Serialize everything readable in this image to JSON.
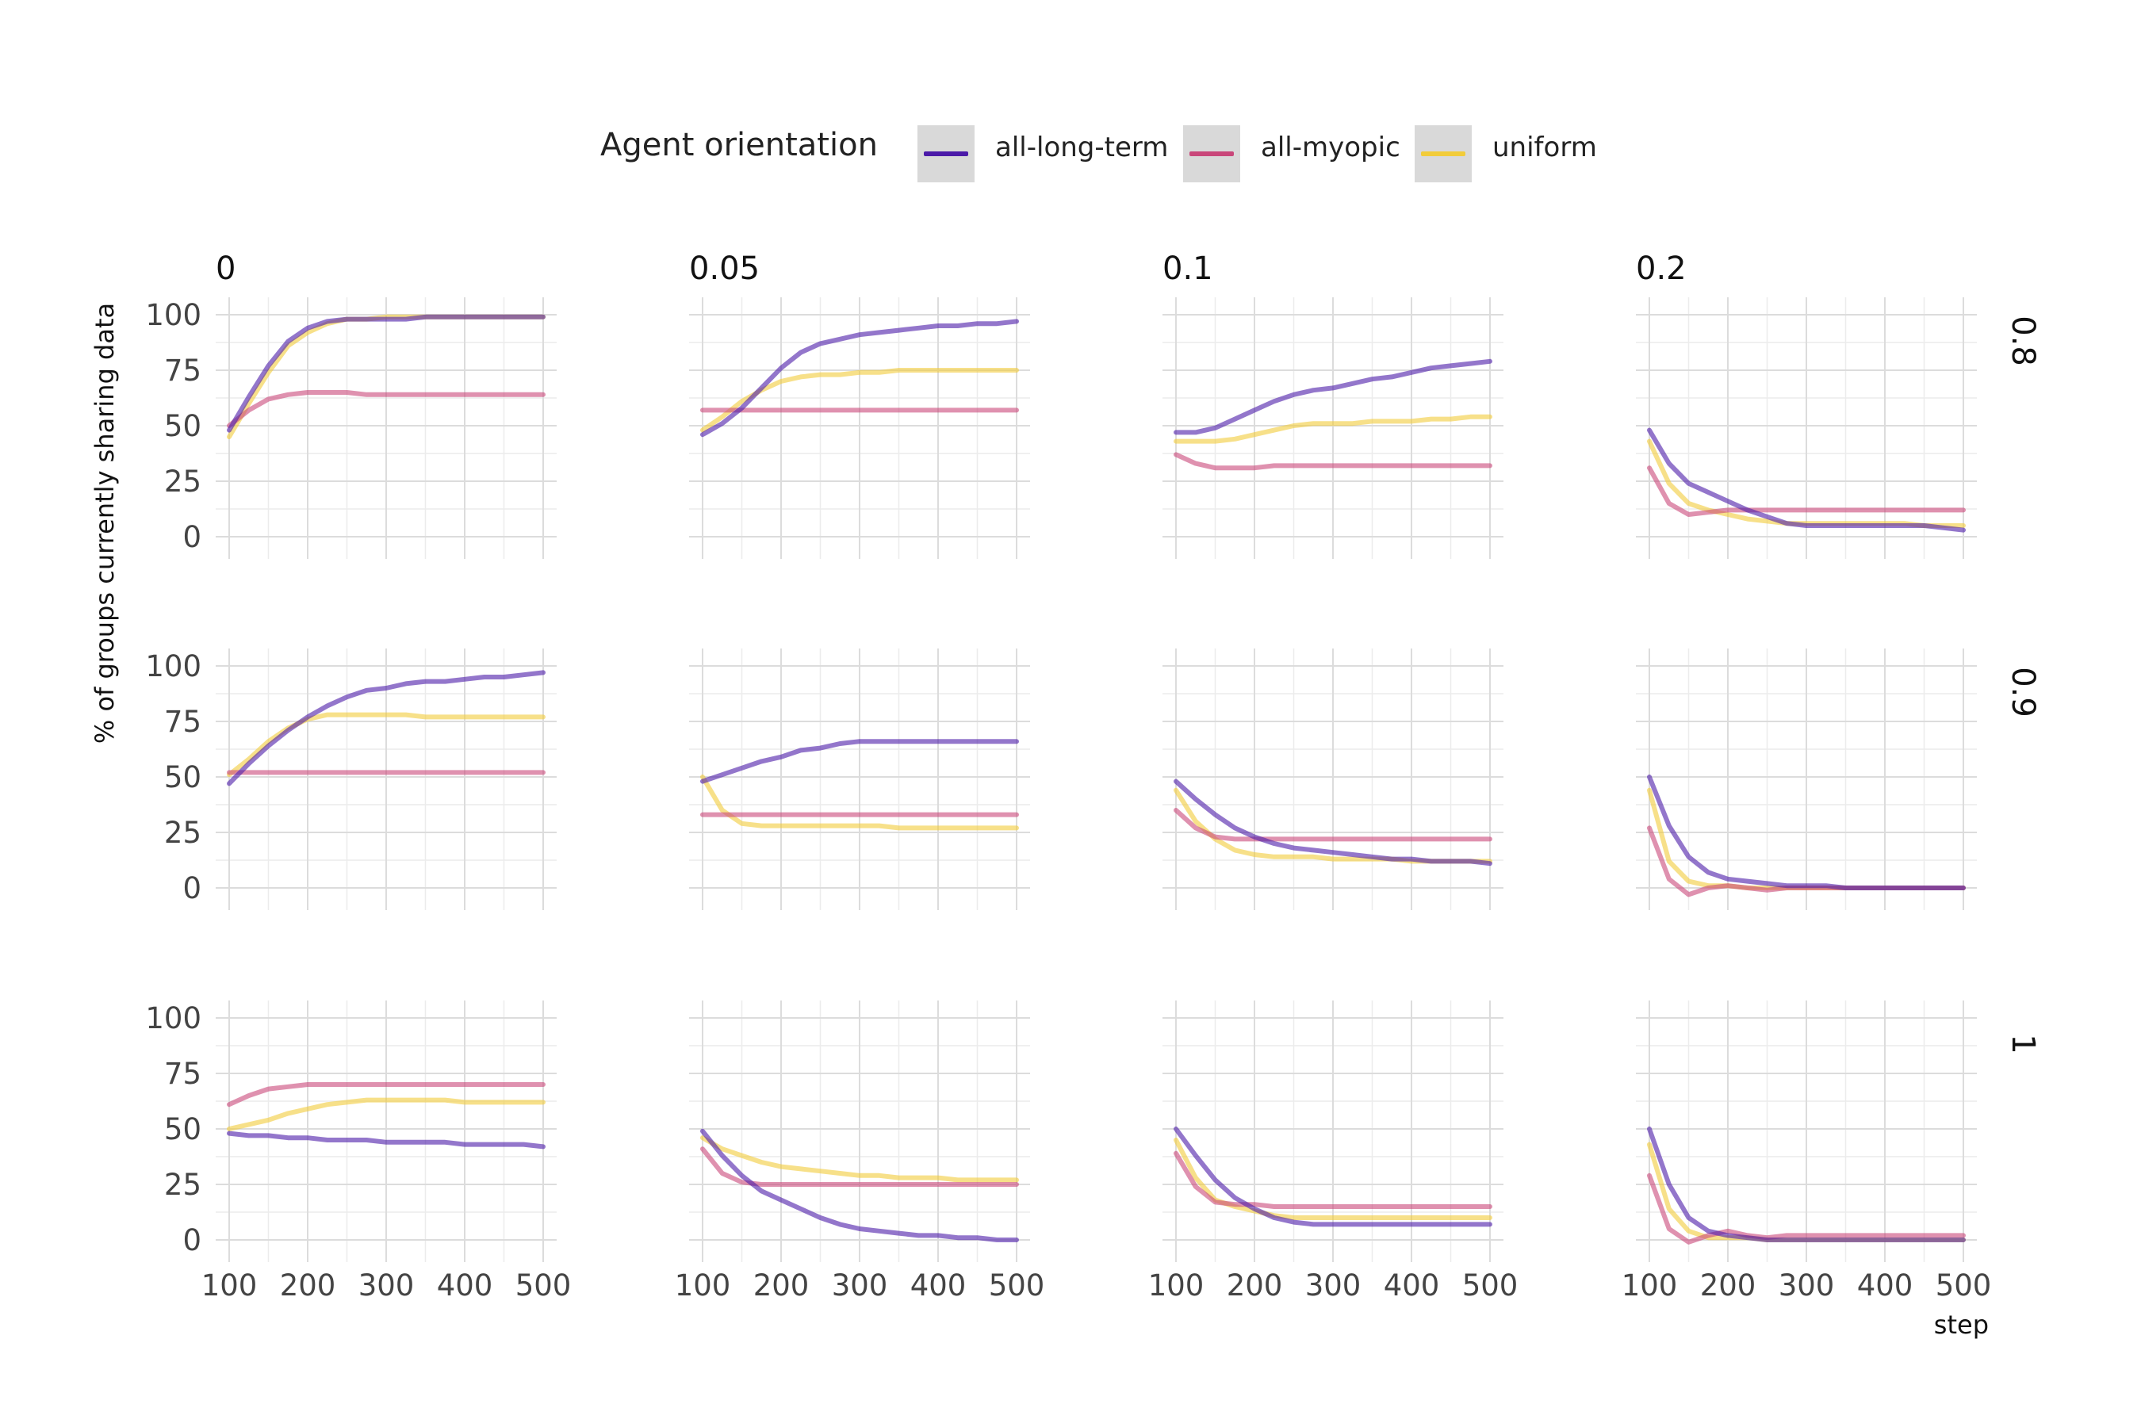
{
  "legend": {
    "title": "Agent orientation",
    "items": [
      {
        "label": "all-long-term",
        "color": "#4b1aa8"
      },
      {
        "label": "all-myopic",
        "color": "#c9477a"
      },
      {
        "label": "uniform",
        "color": "#f2cc3a"
      }
    ]
  },
  "chart_data": {
    "type": "line",
    "subtype": "faceted line chart (3 rows x 4 columns)",
    "ylabel": "% of groups currently sharing data",
    "xlabel": "step",
    "xlim": [
      100,
      500
    ],
    "ylim": [
      0,
      100
    ],
    "x_ticks": [
      100,
      200,
      300,
      400,
      500
    ],
    "y_ticks": [
      0,
      25,
      50,
      75,
      100
    ],
    "grid": true,
    "legend_position": "top",
    "col_facets": [
      "0",
      "0.05",
      "0.1",
      "0.2"
    ],
    "row_facets": [
      "0.8",
      "0.9",
      "1"
    ],
    "x": [
      100,
      125,
      150,
      175,
      200,
      225,
      250,
      275,
      300,
      325,
      350,
      375,
      400,
      425,
      450,
      475,
      500
    ],
    "panels": [
      {
        "row": "0.8",
        "col": "0",
        "series": [
          {
            "name": "all-long-term",
            "values": [
              48,
              63,
              77,
              88,
              94,
              97,
              98,
              98,
              98,
              98,
              99,
              99,
              99,
              99,
              99,
              99,
              99
            ]
          },
          {
            "name": "all-myopic",
            "values": [
              50,
              57,
              62,
              64,
              65,
              65,
              65,
              64,
              64,
              64,
              64,
              64,
              64,
              64,
              64,
              64,
              64
            ]
          },
          {
            "name": "uniform",
            "values": [
              45,
              60,
              74,
              86,
              92,
              96,
              98,
              98,
              99,
              99,
              99,
              99,
              99,
              99,
              99,
              99,
              99
            ]
          }
        ]
      },
      {
        "row": "0.8",
        "col": "0.05",
        "series": [
          {
            "name": "all-long-term",
            "values": [
              46,
              51,
              58,
              67,
              76,
              83,
              87,
              89,
              91,
              92,
              93,
              94,
              95,
              95,
              96,
              96,
              97
            ]
          },
          {
            "name": "all-myopic",
            "values": [
              57,
              57,
              57,
              57,
              57,
              57,
              57,
              57,
              57,
              57,
              57,
              57,
              57,
              57,
              57,
              57,
              57
            ]
          },
          {
            "name": "uniform",
            "values": [
              48,
              54,
              61,
              66,
              70,
              72,
              73,
              73,
              74,
              74,
              75,
              75,
              75,
              75,
              75,
              75,
              75
            ]
          }
        ]
      },
      {
        "row": "0.8",
        "col": "0.1",
        "series": [
          {
            "name": "all-long-term",
            "values": [
              47,
              47,
              49,
              53,
              57,
              61,
              64,
              66,
              67,
              69,
              71,
              72,
              74,
              76,
              77,
              78,
              79
            ]
          },
          {
            "name": "all-myopic",
            "values": [
              37,
              33,
              31,
              31,
              31,
              32,
              32,
              32,
              32,
              32,
              32,
              32,
              32,
              32,
              32,
              32,
              32
            ]
          },
          {
            "name": "uniform",
            "values": [
              43,
              43,
              43,
              44,
              46,
              48,
              50,
              51,
              51,
              51,
              52,
              52,
              52,
              53,
              53,
              54,
              54
            ]
          }
        ]
      },
      {
        "row": "0.8",
        "col": "0.2",
        "series": [
          {
            "name": "all-long-term",
            "values": [
              48,
              33,
              24,
              20,
              16,
              12,
              9,
              6,
              5,
              5,
              5,
              5,
              5,
              5,
              5,
              4,
              3
            ]
          },
          {
            "name": "all-myopic",
            "values": [
              31,
              15,
              10,
              11,
              12,
              12,
              12,
              12,
              12,
              12,
              12,
              12,
              12,
              12,
              12,
              12,
              12
            ]
          },
          {
            "name": "uniform",
            "values": [
              43,
              24,
              15,
              12,
              10,
              8,
              7,
              6,
              6,
              6,
              6,
              6,
              6,
              6,
              5,
              5,
              5
            ]
          }
        ]
      },
      {
        "row": "0.9",
        "col": "0",
        "series": [
          {
            "name": "all-long-term",
            "values": [
              47,
              56,
              64,
              71,
              77,
              82,
              86,
              89,
              90,
              92,
              93,
              93,
              94,
              95,
              95,
              96,
              97
            ]
          },
          {
            "name": "all-myopic",
            "values": [
              52,
              52,
              52,
              52,
              52,
              52,
              52,
              52,
              52,
              52,
              52,
              52,
              52,
              52,
              52,
              52,
              52
            ]
          },
          {
            "name": "uniform",
            "values": [
              51,
              58,
              66,
              72,
              76,
              78,
              78,
              78,
              78,
              78,
              77,
              77,
              77,
              77,
              77,
              77,
              77
            ]
          }
        ]
      },
      {
        "row": "0.9",
        "col": "0.05",
        "series": [
          {
            "name": "all-long-term",
            "values": [
              48,
              51,
              54,
              57,
              59,
              62,
              63,
              65,
              66,
              66,
              66,
              66,
              66,
              66,
              66,
              66,
              66
            ]
          },
          {
            "name": "all-myopic",
            "values": [
              33,
              33,
              33,
              33,
              33,
              33,
              33,
              33,
              33,
              33,
              33,
              33,
              33,
              33,
              33,
              33,
              33
            ]
          },
          {
            "name": "uniform",
            "values": [
              50,
              35,
              29,
              28,
              28,
              28,
              28,
              28,
              28,
              28,
              27,
              27,
              27,
              27,
              27,
              27,
              27
            ]
          }
        ]
      },
      {
        "row": "0.9",
        "col": "0.1",
        "series": [
          {
            "name": "all-long-term",
            "values": [
              48,
              40,
              33,
              27,
              23,
              20,
              18,
              17,
              16,
              15,
              14,
              13,
              13,
              12,
              12,
              12,
              11
            ]
          },
          {
            "name": "all-myopic",
            "values": [
              35,
              27,
              23,
              22,
              22,
              22,
              22,
              22,
              22,
              22,
              22,
              22,
              22,
              22,
              22,
              22,
              22
            ]
          },
          {
            "name": "uniform",
            "values": [
              44,
              30,
              22,
              17,
              15,
              14,
              14,
              14,
              13,
              13,
              13,
              13,
              12,
              12,
              12,
              12,
              12
            ]
          }
        ]
      },
      {
        "row": "0.9",
        "col": "0.2",
        "series": [
          {
            "name": "all-long-term",
            "values": [
              50,
              28,
              14,
              7,
              4,
              3,
              2,
              1,
              1,
              1,
              0,
              0,
              0,
              0,
              0,
              0,
              0
            ]
          },
          {
            "name": "all-myopic",
            "values": [
              27,
              4,
              -3,
              0,
              1,
              0,
              -1,
              0,
              0,
              0,
              0,
              0,
              0,
              0,
              0,
              0,
              0
            ]
          },
          {
            "name": "uniform",
            "values": [
              44,
              12,
              3,
              1,
              1,
              0,
              0,
              0,
              0,
              0,
              0,
              0,
              0,
              0,
              0,
              0,
              0
            ]
          }
        ]
      },
      {
        "row": "1",
        "col": "0",
        "series": [
          {
            "name": "all-long-term",
            "values": [
              48,
              47,
              47,
              46,
              46,
              45,
              45,
              45,
              44,
              44,
              44,
              44,
              43,
              43,
              43,
              43,
              42
            ]
          },
          {
            "name": "all-myopic",
            "values": [
              61,
              65,
              68,
              69,
              70,
              70,
              70,
              70,
              70,
              70,
              70,
              70,
              70,
              70,
              70,
              70,
              70
            ]
          },
          {
            "name": "uniform",
            "values": [
              50,
              52,
              54,
              57,
              59,
              61,
              62,
              63,
              63,
              63,
              63,
              63,
              62,
              62,
              62,
              62,
              62
            ]
          }
        ]
      },
      {
        "row": "1",
        "col": "0.05",
        "series": [
          {
            "name": "all-long-term",
            "values": [
              49,
              38,
              29,
              22,
              18,
              14,
              10,
              7,
              5,
              4,
              3,
              2,
              2,
              1,
              1,
              0,
              0
            ]
          },
          {
            "name": "all-myopic",
            "values": [
              41,
              30,
              26,
              25,
              25,
              25,
              25,
              25,
              25,
              25,
              25,
              25,
              25,
              25,
              25,
              25,
              25
            ]
          },
          {
            "name": "uniform",
            "values": [
              46,
              41,
              38,
              35,
              33,
              32,
              31,
              30,
              29,
              29,
              28,
              28,
              28,
              27,
              27,
              27,
              27
            ]
          }
        ]
      },
      {
        "row": "1",
        "col": "0.1",
        "series": [
          {
            "name": "all-long-term",
            "values": [
              50,
              38,
              27,
              19,
              14,
              10,
              8,
              7,
              7,
              7,
              7,
              7,
              7,
              7,
              7,
              7,
              7
            ]
          },
          {
            "name": "all-myopic",
            "values": [
              39,
              24,
              17,
              16,
              16,
              15,
              15,
              15,
              15,
              15,
              15,
              15,
              15,
              15,
              15,
              15,
              15
            ]
          },
          {
            "name": "uniform",
            "values": [
              45,
              28,
              18,
              15,
              13,
              11,
              10,
              10,
              10,
              10,
              10,
              10,
              10,
              10,
              10,
              10,
              10
            ]
          }
        ]
      },
      {
        "row": "1",
        "col": "0.2",
        "series": [
          {
            "name": "all-long-term",
            "values": [
              50,
              25,
              10,
              4,
              2,
              1,
              0,
              0,
              0,
              0,
              0,
              0,
              0,
              0,
              0,
              0,
              0
            ]
          },
          {
            "name": "all-myopic",
            "values": [
              29,
              5,
              -1,
              2,
              4,
              2,
              1,
              2,
              2,
              2,
              2,
              2,
              2,
              2,
              2,
              2,
              2
            ]
          },
          {
            "name": "uniform",
            "values": [
              43,
              14,
              4,
              1,
              1,
              1,
              0,
              0,
              0,
              0,
              0,
              0,
              0,
              0,
              0,
              0,
              0
            ]
          }
        ]
      }
    ]
  }
}
